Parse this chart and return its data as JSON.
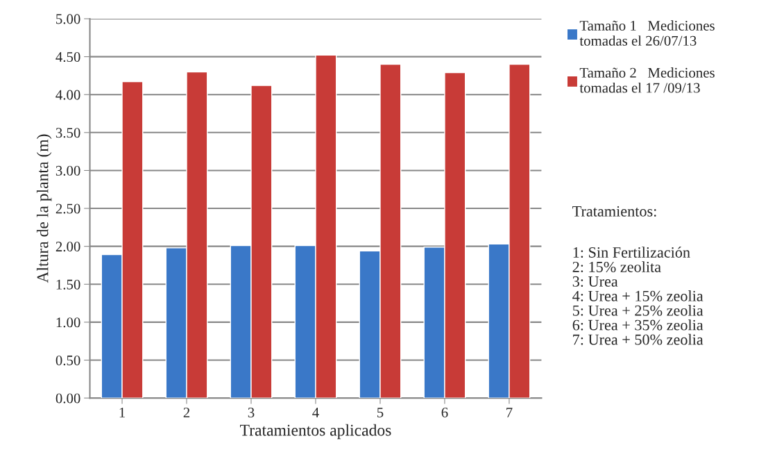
{
  "chart_data": {
    "type": "bar",
    "categories": [
      "1",
      "2",
      "3",
      "4",
      "5",
      "6",
      "7"
    ],
    "series": [
      {
        "name": "Tamaño 1   Mediciones\ntomadas el 26/07/13",
        "color": "#3a78c8",
        "values": [
          1.89,
          1.98,
          2.01,
          2.01,
          1.94,
          1.99,
          2.03
        ]
      },
      {
        "name": "Tamaño 2   Mediciones\ntomadas el 17 /09/13",
        "color": "#c83b37",
        "values": [
          4.17,
          4.3,
          4.12,
          4.52,
          4.4,
          4.29,
          4.4
        ]
      }
    ],
    "xlabel": "Tratamientos aplicados",
    "ylabel": "Altura de la planta (m)",
    "ylim": [
      0,
      5
    ],
    "yticks": [
      {
        "value": 0,
        "label": "0.00"
      },
      {
        "value": 0.5,
        "label": "0.50"
      },
      {
        "value": 1,
        "label": "1.00"
      },
      {
        "value": 1.5,
        "label": "1.50"
      },
      {
        "value": 2,
        "label": "2.00"
      },
      {
        "value": 2.5,
        "label": "2.50"
      },
      {
        "value": 3,
        "label": "3.00"
      },
      {
        "value": 3.5,
        "label": "3.50"
      },
      {
        "value": 4,
        "label": "4.00"
      },
      {
        "value": 4.5,
        "label": "4.50"
      },
      {
        "value": 5,
        "label": "5.00"
      }
    ],
    "grid": "y",
    "legend": "top right",
    "annotations": [
      "Tratamientos:",
      "1: Sin Fertilización\n2: 15% zeolita\n3: Urea\n4: Urea + 15% zeolia\n5: Urea + 25% zeolia\n6: Urea + 35% zeolia\n7: Urea + 50% zeolia"
    ]
  }
}
